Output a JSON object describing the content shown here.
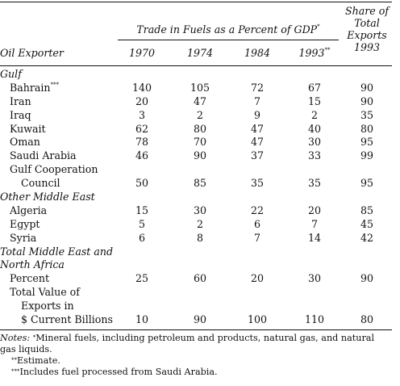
{
  "header": {
    "group_label": "Trade in Fuels as a Percent of GDP",
    "group_mark": "*",
    "exporter_label": "Oil Exporter",
    "share_lines": [
      "Share of",
      "Total",
      "Exports",
      "1993"
    ],
    "years": [
      "1970",
      "1974",
      "1984",
      "1993"
    ],
    "year_marks": [
      "",
      "",
      "",
      "**"
    ]
  },
  "rows": [
    {
      "label": "Gulf",
      "style": "section",
      "indent": 0,
      "values": [
        "",
        "",
        "",
        "",
        ""
      ]
    },
    {
      "label": "Bahrain",
      "mark": "***",
      "indent": 1,
      "values": [
        "140",
        "105",
        "72",
        "67",
        "90"
      ]
    },
    {
      "label": "Iran",
      "indent": 1,
      "values": [
        "20",
        "47",
        "7",
        "15",
        "90"
      ]
    },
    {
      "label": "Iraq",
      "indent": 1,
      "values": [
        "3",
        "2",
        "9",
        "2",
        "35"
      ]
    },
    {
      "label": "Kuwait",
      "indent": 1,
      "values": [
        "62",
        "80",
        "47",
        "40",
        "80"
      ]
    },
    {
      "label": "Oman",
      "indent": 1,
      "values": [
        "78",
        "70",
        "47",
        "30",
        "95"
      ]
    },
    {
      "label": "Saudi Arabia",
      "indent": 1,
      "values": [
        "46",
        "90",
        "37",
        "33",
        "99"
      ]
    },
    {
      "label": "Gulf Cooperation",
      "indent": 1,
      "values": [
        "",
        "",
        "",
        "",
        ""
      ]
    },
    {
      "label": "Council",
      "indent": 2,
      "values": [
        "50",
        "85",
        "35",
        "35",
        "95"
      ]
    },
    {
      "label": "Other Middle East",
      "style": "section",
      "indent": 0,
      "values": [
        "",
        "",
        "",
        "",
        ""
      ]
    },
    {
      "label": "Algeria",
      "indent": 1,
      "values": [
        "15",
        "30",
        "22",
        "20",
        "85"
      ]
    },
    {
      "label": "Egypt",
      "indent": 1,
      "values": [
        "5",
        "2",
        "6",
        "7",
        "45"
      ]
    },
    {
      "label": "Syria",
      "indent": 1,
      "values": [
        "6",
        "8",
        "7",
        "14",
        "42"
      ]
    },
    {
      "label": "Total Middle East and",
      "style": "section",
      "indent": 0,
      "values": [
        "",
        "",
        "",
        "",
        ""
      ]
    },
    {
      "label": "North Africa",
      "style": "section",
      "indent": 0,
      "values": [
        "",
        "",
        "",
        "",
        ""
      ]
    },
    {
      "label": "Percent",
      "indent": 1,
      "values": [
        "25",
        "60",
        "20",
        "30",
        "90"
      ]
    },
    {
      "label": "Total Value of",
      "indent": 1,
      "values": [
        "",
        "",
        "",
        "",
        ""
      ]
    },
    {
      "label": "Exports in",
      "indent": 2,
      "values": [
        "",
        "",
        "",
        "",
        ""
      ]
    },
    {
      "label": "$ Current Billions",
      "indent": 2,
      "values": [
        "10",
        "90",
        "100",
        "110",
        "80"
      ]
    }
  ],
  "notes": [
    {
      "prefix": "Notes:",
      "mark": "*",
      "text": "Mineral fuels, including petroleum and products, natural gas, and natural gas liquids."
    },
    {
      "prefix": "",
      "mark": "**",
      "text": "Estimate."
    },
    {
      "prefix": "",
      "mark": "***",
      "text": "Includes fuel processed from Saudi Arabia."
    }
  ]
}
